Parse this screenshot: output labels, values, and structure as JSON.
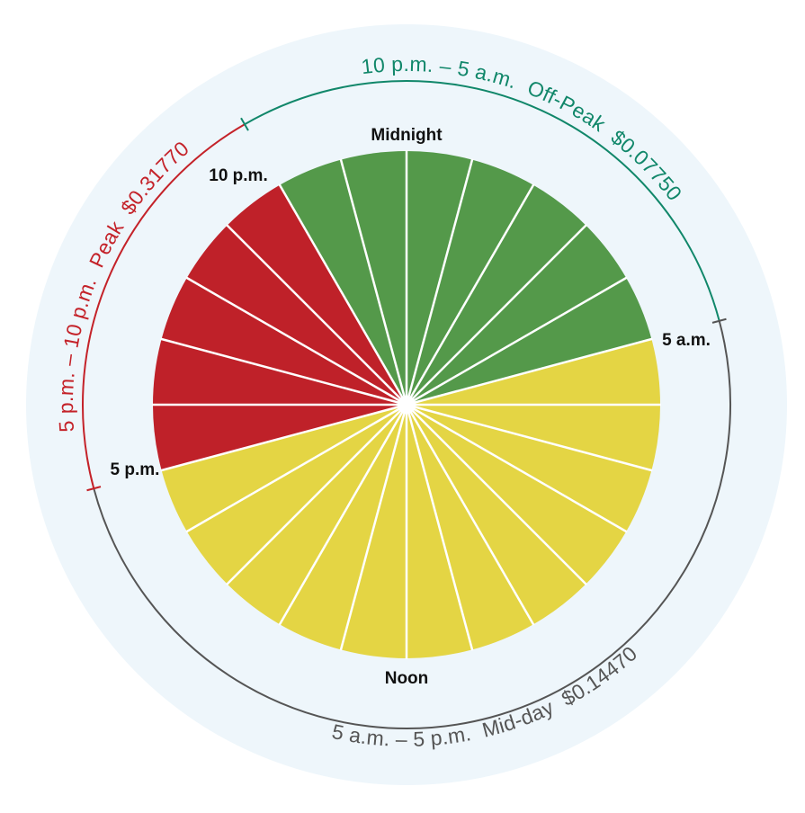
{
  "hours_per_day": 24,
  "hour_labels": {
    "midnight": "Midnight",
    "ten_pm": "10 p.m.",
    "five_am": "5 a.m.",
    "five_pm": "5 p.m.",
    "noon": "Noon"
  },
  "periods": [
    {
      "id": "offpeak",
      "hours": "10 p.m. – 5 a.m.",
      "name": "Off-Peak",
      "rate": "$0.07750",
      "start_hour": 22,
      "end_hour": 5,
      "color": "#54994a",
      "arc_color": "#11876a"
    },
    {
      "id": "midday",
      "hours": "5 a.m. – 5 p.m.",
      "name": "Mid-day",
      "rate": "$0.14470",
      "start_hour": 5,
      "end_hour": 17,
      "color": "#e4d544",
      "arc_color": "#555555"
    },
    {
      "id": "peak",
      "hours": "5 p.m. – 10 p.m.",
      "name": "Peak",
      "rate": "$0.31770",
      "start_hour": 17,
      "end_hour": 22,
      "color": "#bf2129",
      "arc_color": "#c42229"
    }
  ],
  "colors": {
    "background_disc": "#eef6fb",
    "divider": "#ffffff"
  }
}
